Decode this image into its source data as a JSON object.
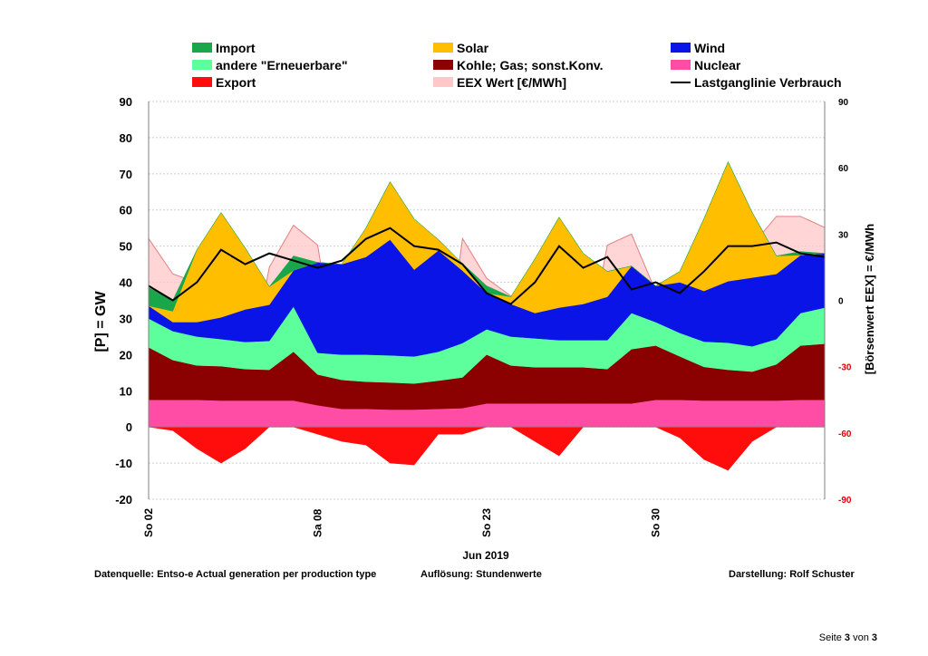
{
  "chart_data": {
    "type": "area",
    "title": "",
    "month_label": "Jun 2019",
    "ylabel_left": "[P]  =  GW",
    "ylabel_right": "[Börsenwert  EEX]  = €/MWh",
    "ylim_left": [
      -20,
      90
    ],
    "yticks_left": [
      "-20",
      "-10",
      "0",
      "10",
      "20",
      "30",
      "40",
      "50",
      "60",
      "70",
      "80",
      "90"
    ],
    "ylim_right": [
      -90,
      90
    ],
    "yticks_right": [
      "90",
      "60",
      "30",
      "0",
      "-30",
      "-60",
      "-90"
    ],
    "xlim_hours": [
      0,
      672
    ],
    "x_ticks": [
      {
        "label": "So 02",
        "hour": 0
      },
      {
        "label": "Sa 08",
        "hour": 168
      },
      {
        "label": "So 23",
        "hour": 336
      },
      {
        "label": "So 30",
        "hour": 504
      }
    ],
    "grid": true,
    "legend": [
      {
        "label": "Import",
        "color": "#1aa64a",
        "kind": "swatch"
      },
      {
        "label": "Solar",
        "color": "#ffbf00",
        "kind": "swatch"
      },
      {
        "label": "Wind",
        "color": "#0a14e6",
        "kind": "swatch"
      },
      {
        "label": "andere \"Erneuerbare\"",
        "color": "#5cff9c",
        "kind": "swatch"
      },
      {
        "label": "Kohle; Gas; sonst.Konv.",
        "color": "#8b0000",
        "kind": "swatch"
      },
      {
        "label": "Nuclear",
        "color": "#ff4da6",
        "kind": "swatch"
      },
      {
        "label": "Export",
        "color": "#ff0d0d",
        "kind": "swatch"
      },
      {
        "label": "EEX Wert [€/MWh]",
        "color": "#ffc7c7",
        "kind": "swatch"
      },
      {
        "label": "Lastganglinie Verbrauch",
        "color": "#000000",
        "kind": "line"
      }
    ],
    "x_hours": [
      0,
      24,
      48,
      72,
      96,
      120,
      144,
      168,
      192,
      216,
      240,
      264,
      288,
      312,
      336,
      360,
      384,
      408,
      432,
      456,
      480,
      504,
      528,
      552,
      576,
      600,
      624,
      648,
      672
    ],
    "series": [
      {
        "name": "Nuclear",
        "color": "#ff4da6",
        "values": [
          7.5,
          7.5,
          7.5,
          7.3,
          7.3,
          7.3,
          7.3,
          6,
          5,
          5,
          4.8,
          4.8,
          5,
          5.2,
          6.5,
          6.5,
          6.5,
          6.5,
          6.5,
          6.5,
          6.5,
          7.5,
          7.5,
          7.3,
          7.3,
          7.3,
          7.3,
          7.5,
          7.5
        ]
      },
      {
        "name": "Kohle; Gas; sonst.Konv.",
        "color": "#8b0000",
        "values": [
          14.5,
          11,
          9.5,
          9.5,
          8.7,
          8.5,
          13.5,
          8.5,
          8,
          7.5,
          7.5,
          7.2,
          7.8,
          8.5,
          13.5,
          10.5,
          10,
          10,
          10,
          9.5,
          15,
          15,
          12,
          9.3,
          8.5,
          8,
          10,
          15,
          15.5
        ]
      },
      {
        "name": "andere \"Erneuerbare\"",
        "color": "#5cff9c",
        "values": [
          8,
          8,
          8,
          7.5,
          7.5,
          8,
          12.5,
          6,
          7,
          7.5,
          7.5,
          7.5,
          8,
          9.5,
          7,
          8,
          8,
          7.5,
          7.5,
          8,
          10,
          6.5,
          6.5,
          7,
          7.5,
          7,
          7,
          9,
          10
        ]
      },
      {
        "name": "Wind",
        "color": "#0a14e6",
        "values": [
          3.5,
          2.5,
          4,
          6,
          9,
          10,
          10,
          25,
          25,
          27,
          32,
          24,
          28,
          20,
          10,
          9,
          7,
          9,
          10,
          12,
          13,
          10,
          14,
          14,
          17,
          19,
          18,
          16,
          15
        ]
      },
      {
        "name": "Solar",
        "color": "#ffbf00",
        "values": [
          0,
          3,
          20,
          29,
          17,
          5,
          0,
          0,
          0,
          8,
          16,
          14,
          3,
          2,
          0,
          2,
          15,
          25,
          14,
          7,
          0,
          0,
          3,
          20,
          33,
          18,
          5,
          0,
          0
        ]
      },
      {
        "name": "Import",
        "color": "#1aa64a",
        "values": [
          5,
          3,
          0,
          0,
          0,
          0,
          4,
          0,
          0,
          0,
          0,
          0,
          0,
          0,
          2,
          0,
          0,
          0,
          0,
          0,
          0,
          0,
          0,
          0,
          0,
          0,
          0,
          1,
          0
        ]
      },
      {
        "name": "Export",
        "color": "#ff0d0d",
        "values": [
          0,
          -1,
          -6,
          -10,
          -6,
          0,
          0,
          -2,
          -4,
          -5,
          -10,
          -10.5,
          -2,
          -2,
          0,
          0,
          -4,
          -8,
          0,
          0,
          0,
          0,
          -3,
          -9,
          -12,
          -4,
          0,
          0,
          0
        ]
      },
      {
        "name": "EEX Wert [€/MWh]",
        "color": "#ffc7c7",
        "values": [
          28,
          12,
          8,
          -12,
          -40,
          15,
          34,
          25,
          -42,
          -52,
          -14,
          -45,
          -54,
          28,
          10,
          2,
          -5,
          -20,
          -32,
          25,
          30,
          4,
          -5,
          -12,
          -50,
          25,
          38,
          38,
          33
        ]
      },
      {
        "name": "Lastganglinie Verbrauch",
        "color": "#000000",
        "values": [
          39,
          35,
          40,
          49,
          45,
          48,
          46,
          44,
          46,
          52,
          55,
          50,
          49,
          45,
          37,
          34,
          40,
          50,
          44,
          47,
          38,
          40,
          37,
          43,
          50,
          50,
          51,
          48,
          47
        ]
      }
    ]
  },
  "footer": {
    "datasource": "Datenquelle: Entso-e  Actual generation per production type",
    "resolution": "Auflösung:  Stundenwerte",
    "author": "Darstellung:  Rolf Schuster"
  },
  "page": {
    "prefix": "Seite ",
    "current": "3",
    "middle": " von ",
    "total": "3"
  }
}
